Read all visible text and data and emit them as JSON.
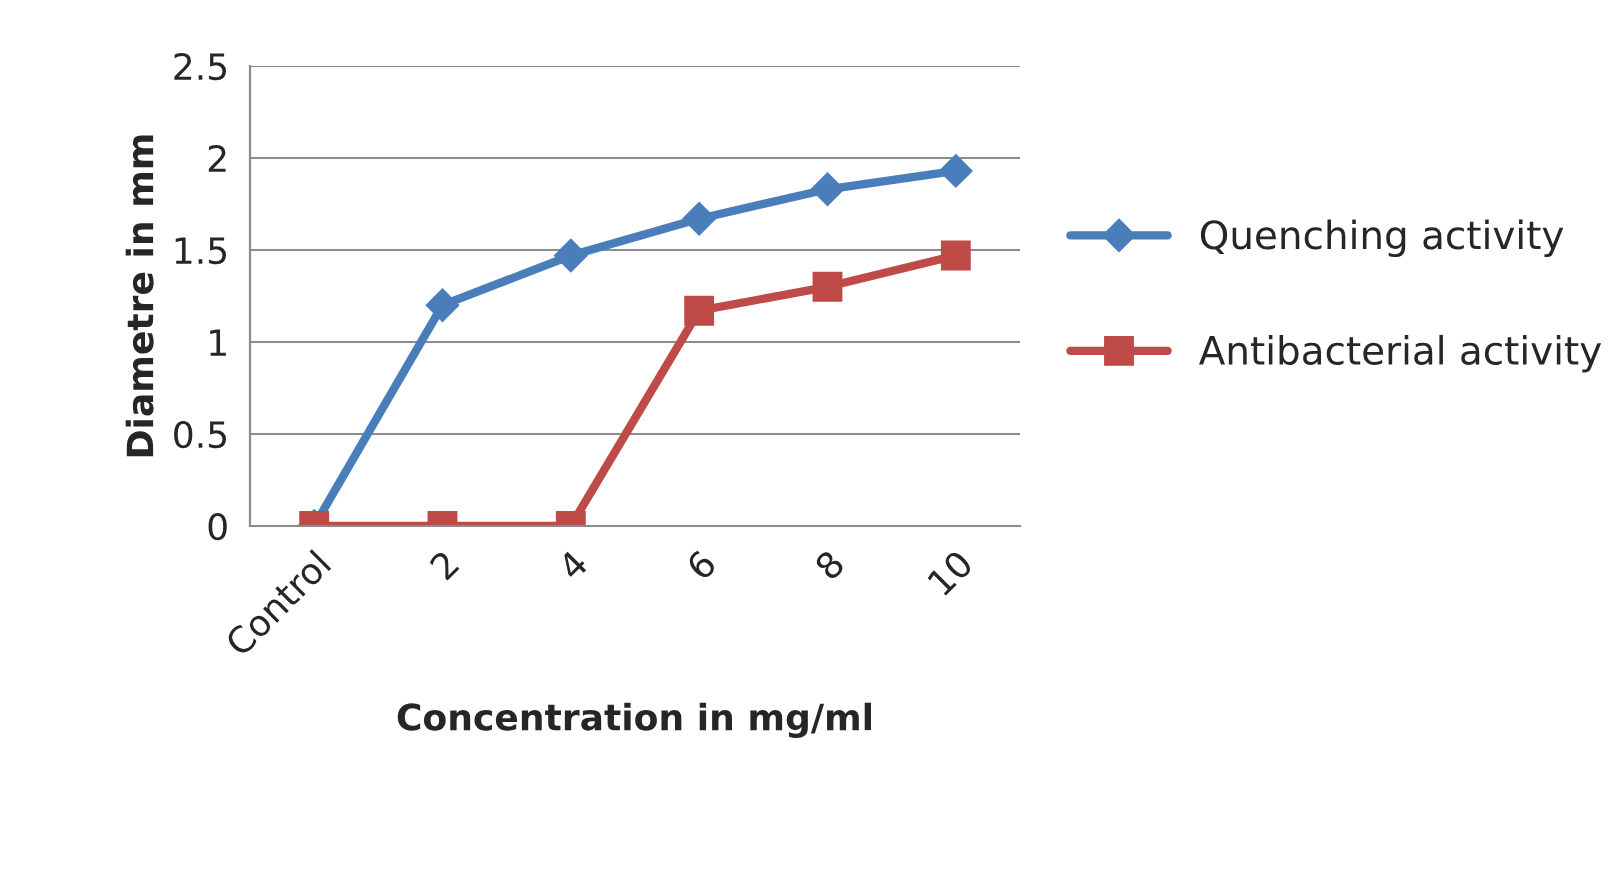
{
  "chart_data": {
    "type": "line",
    "xlabel": "Concentration in mg/ml",
    "ylabel": "Diametre in mm",
    "categories": [
      "Control",
      "2",
      "4",
      "6",
      "8",
      "10"
    ],
    "series": [
      {
        "name": "Quenching activity",
        "color": "#4a7ebb",
        "marker": "diamond",
        "values": [
          0,
          1.2,
          1.47,
          1.67,
          1.83,
          1.93
        ]
      },
      {
        "name": "Antibacterial activity",
        "color": "#be4b48",
        "marker": "square",
        "values": [
          0,
          0,
          0,
          1.17,
          1.3,
          1.47
        ]
      }
    ],
    "ylim": [
      0,
      2.5
    ],
    "yticks": [
      0,
      0.5,
      1,
      1.5,
      2,
      2.5
    ],
    "grid": "y",
    "legend": "right",
    "line_style": "solid"
  }
}
